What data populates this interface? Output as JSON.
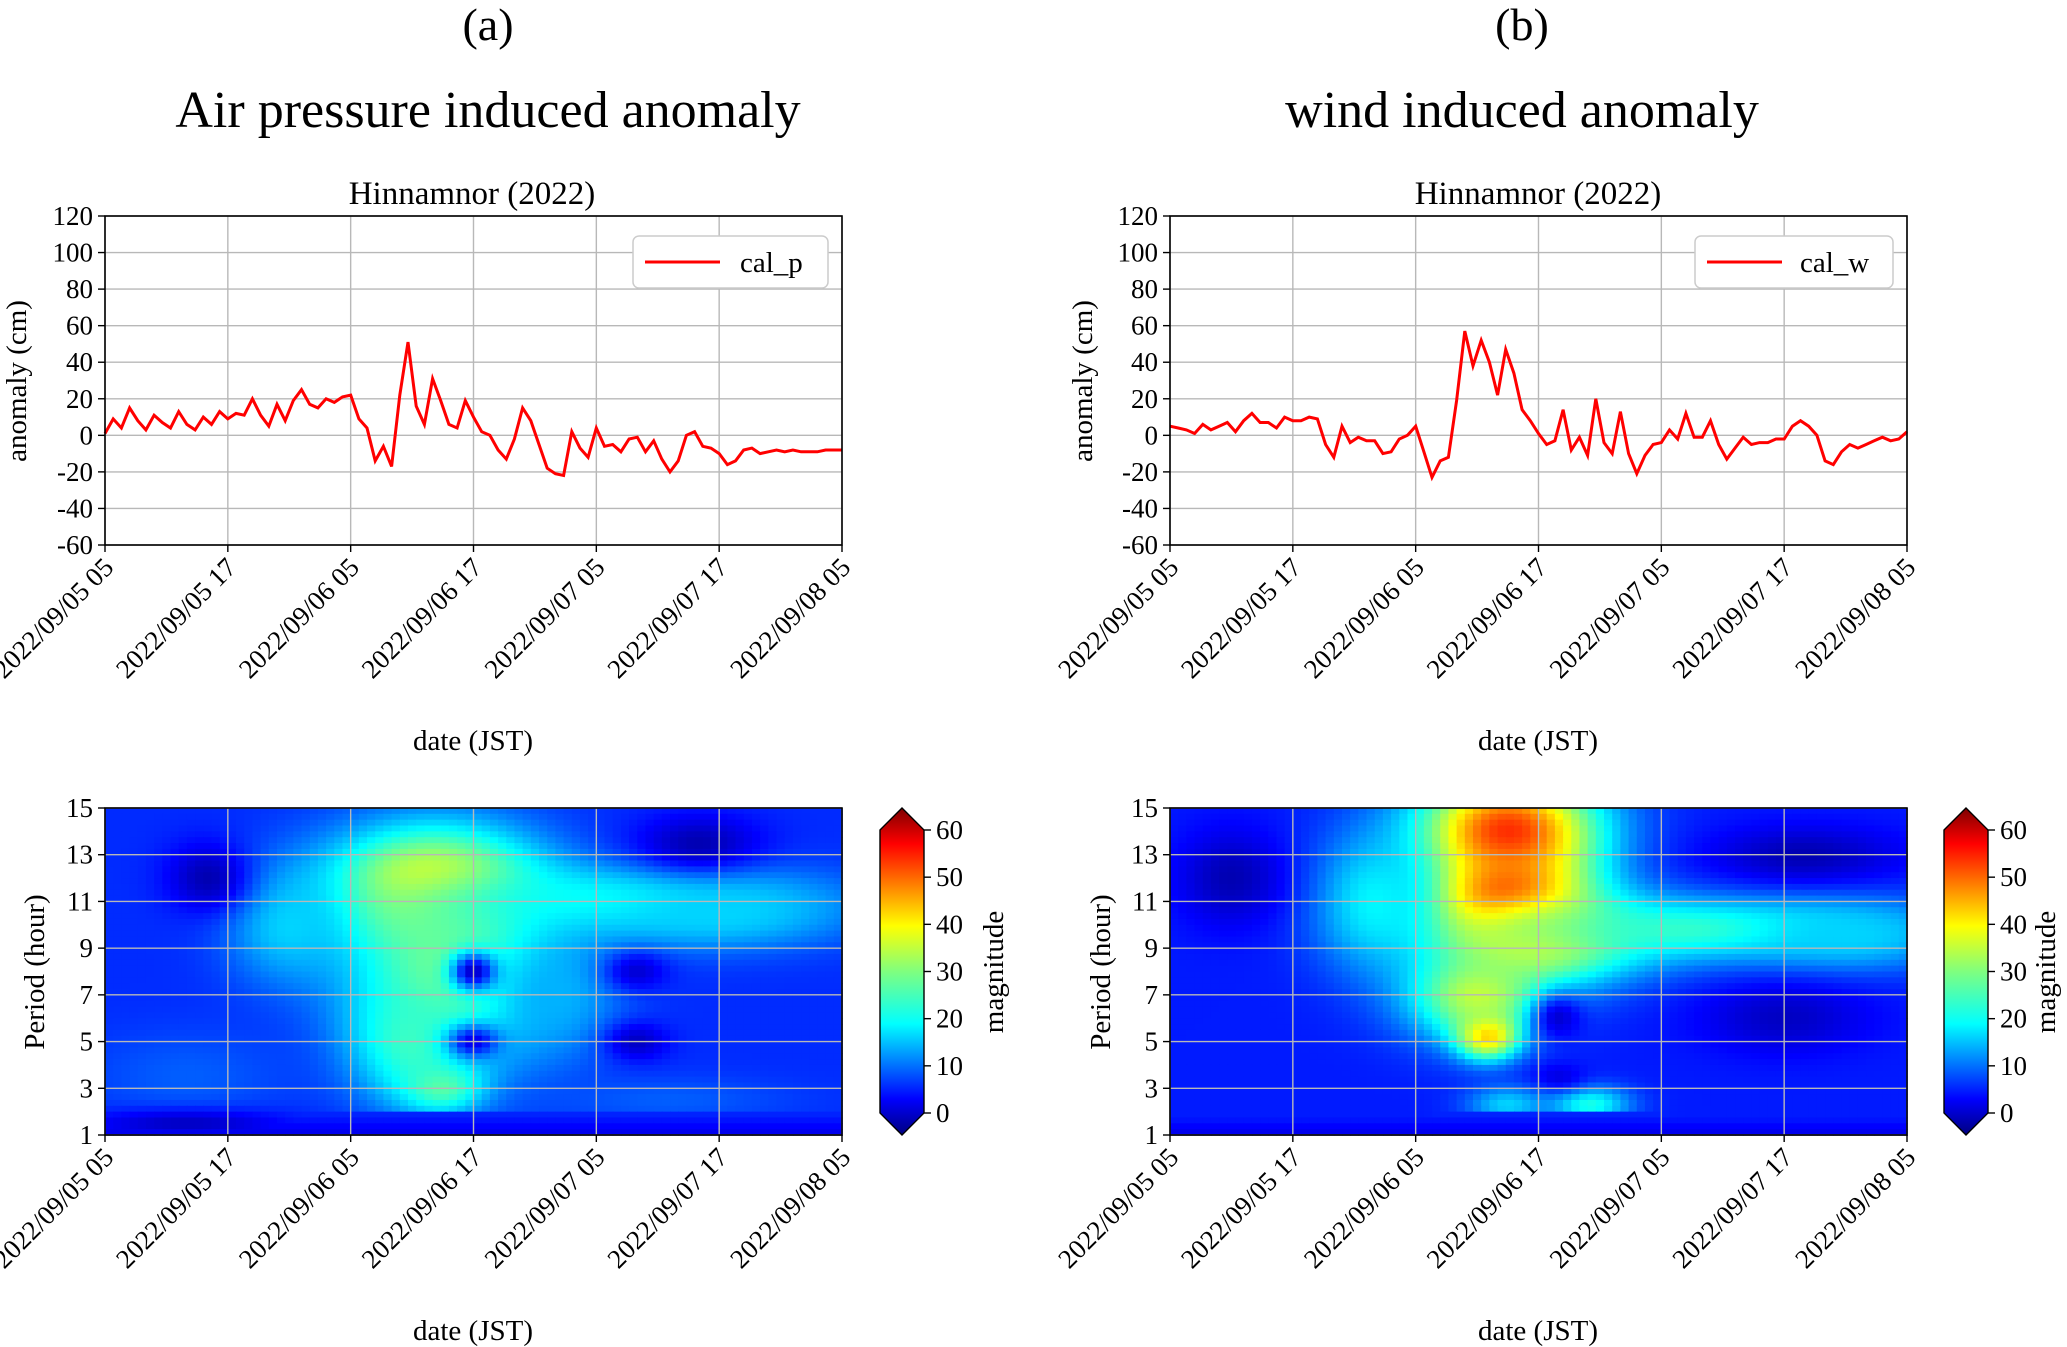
{
  "panels": [
    {
      "letter": "(a)",
      "title": "Air pressure induced anomaly",
      "line_chart": {
        "type": "line",
        "title": "Hinnamnor (2022)",
        "xlabel": "date (JST)",
        "ylabel": "anomaly (cm)",
        "xlim_hours": [
          0,
          72
        ],
        "ylim": [
          -60,
          120
        ],
        "yticks": [
          -60,
          -40,
          -20,
          0,
          20,
          40,
          60,
          80,
          100,
          120
        ],
        "xticks": [
          "2022/09/05 05",
          "2022/09/05 17",
          "2022/09/06 05",
          "2022/09/06 17",
          "2022/09/07 05",
          "2022/09/07 17",
          "2022/09/08 05"
        ],
        "xtick_hours": [
          0,
          12,
          24,
          36,
          48,
          60,
          72
        ],
        "grid": true,
        "legend": "cal_p",
        "legend_position": "top-right",
        "color": "#ff0000",
        "series": [
          {
            "name": "cal_p",
            "x": [
              0,
              0.8,
              1.6,
              2.4,
              3.2,
              4,
              4.8,
              5.6,
              6.4,
              7.2,
              8,
              8.8,
              9.6,
              10.4,
              11.2,
              12,
              12.8,
              13.6,
              14.4,
              15.2,
              16,
              16.8,
              17.6,
              18.4,
              19.2,
              20,
              20.8,
              21.6,
              22.4,
              23.2,
              24,
              24.8,
              25.6,
              26.4,
              27.2,
              28,
              28.8,
              29.6,
              30.4,
              31.2,
              32,
              32.8,
              33.6,
              34.4,
              35.2,
              36,
              36.8,
              37.6,
              38.4,
              39.2,
              40,
              40.8,
              41.6,
              42.4,
              43.2,
              44,
              44.8,
              45.6,
              46.4,
              47.2,
              48,
              48.8,
              49.6,
              50.4,
              51.2,
              52,
              52.8,
              53.6,
              54.4,
              55.2,
              56,
              56.8,
              57.6,
              58.4,
              59.2,
              60,
              60.8,
              61.6,
              62.4,
              63.2,
              64,
              64.8,
              65.6,
              66.4,
              67.2,
              68,
              68.8,
              69.6,
              70.4,
              71.2,
              72
            ],
            "y": [
              1,
              9,
              4,
              15,
              8,
              3,
              11,
              7,
              4,
              13,
              6,
              3,
              10,
              6,
              13,
              9,
              12,
              11,
              20,
              11,
              5,
              17,
              8,
              19,
              25,
              17,
              15,
              20,
              18,
              21,
              22,
              9,
              4,
              -14,
              -6,
              -17,
              22,
              51,
              16,
              6,
              31,
              19,
              6,
              4,
              19,
              10,
              2,
              0,
              -8,
              -13,
              -2,
              15,
              8,
              -5,
              -18,
              -21,
              -22,
              2,
              -7,
              -12,
              4,
              -6,
              -5,
              -9,
              -2,
              -1,
              -9,
              -3,
              -13,
              -20,
              -14,
              0,
              2,
              -6,
              -7,
              -10,
              -16,
              -14,
              -8,
              -7,
              -10,
              -9,
              -8,
              -9,
              -8,
              -9,
              -9,
              -9,
              -8,
              -8,
              -8
            ]
          }
        ]
      },
      "heatmap": {
        "type": "heatmap",
        "xlabel": "date (JST)",
        "ylabel": "Period (hour)",
        "ylim": [
          1,
          15
        ],
        "yticks": [
          1,
          3,
          5,
          7,
          9,
          11,
          13,
          15
        ],
        "xticks": [
          "2022/09/05 05",
          "2022/09/05 17",
          "2022/09/06 05",
          "2022/09/06 17",
          "2022/09/07 05",
          "2022/09/07 17",
          "2022/09/08 05"
        ],
        "colorbar_label": "magnitude",
        "colorbar_ticks": [
          0,
          10,
          20,
          30,
          40,
          50,
          60
        ],
        "colorbar_range": [
          0,
          60
        ],
        "colormap": "jet",
        "background_magnitude": 10,
        "features": [
          {
            "hour": 32,
            "period": 11.5,
            "magnitude": 42,
            "spread_h": 10,
            "spread_p": 2.6
          },
          {
            "hour": 34,
            "period": 8,
            "magnitude": 30,
            "spread_h": 10,
            "spread_p": 4
          },
          {
            "hour": 30,
            "period": 5,
            "magnitude": 26,
            "spread_h": 6,
            "spread_p": 2.5
          },
          {
            "hour": 33,
            "period": 3,
            "magnitude": 28,
            "spread_h": 4,
            "spread_p": 1
          },
          {
            "hour": 48,
            "period": 11,
            "magnitude": 24,
            "spread_h": 20,
            "spread_p": 1.5
          },
          {
            "hour": 60,
            "period": 10.5,
            "magnitude": 20,
            "spread_h": 12,
            "spread_p": 1.5
          },
          {
            "hour": 18,
            "period": 10,
            "magnitude": 20,
            "spread_h": 6,
            "spread_p": 2.5
          },
          {
            "hour": 44,
            "period": 7,
            "magnitude": 18,
            "spread_h": 6,
            "spread_p": 2.5
          },
          {
            "hour": 8,
            "period": 3.5,
            "magnitude": 13,
            "spread_h": 10,
            "spread_p": 2
          },
          {
            "hour": 55,
            "period": 2.5,
            "magnitude": 13,
            "spread_h": 12,
            "spread_p": 1
          },
          {
            "hour": 36,
            "period": 8,
            "magnitude": 4,
            "spread_h": 2.2,
            "spread_p": 0.8
          },
          {
            "hour": 36,
            "period": 5,
            "magnitude": 6,
            "spread_h": 2.5,
            "spread_p": 0.7
          },
          {
            "hour": 52,
            "period": 8,
            "magnitude": 5,
            "spread_h": 3,
            "spread_p": 0.8
          },
          {
            "hour": 52,
            "period": 5,
            "magnitude": 4,
            "spread_h": 3,
            "spread_p": 0.8
          },
          {
            "hour": 10,
            "period": 12,
            "magnitude": 3,
            "spread_h": 4,
            "spread_p": 1.5
          },
          {
            "hour": 58,
            "period": 13.5,
            "magnitude": 3,
            "spread_h": 6,
            "spread_p": 1.2
          },
          {
            "hour": 8,
            "period": 1.5,
            "magnitude": 4,
            "spread_h": 10,
            "spread_p": 0.6
          }
        ]
      }
    },
    {
      "letter": "(b)",
      "title": "wind induced anomaly",
      "line_chart": {
        "type": "line",
        "title": "Hinnamnor (2022)",
        "xlabel": "date (JST)",
        "ylabel": "anomaly (cm)",
        "xlim_hours": [
          0,
          72
        ],
        "ylim": [
          -60,
          120
        ],
        "yticks": [
          -60,
          -40,
          -20,
          0,
          20,
          40,
          60,
          80,
          100,
          120
        ],
        "xticks": [
          "2022/09/05 05",
          "2022/09/05 17",
          "2022/09/06 05",
          "2022/09/06 17",
          "2022/09/07 05",
          "2022/09/07 17",
          "2022/09/08 05"
        ],
        "xtick_hours": [
          0,
          12,
          24,
          36,
          48,
          60,
          72
        ],
        "grid": true,
        "legend": "cal_w",
        "legend_position": "top-right",
        "color": "#ff0000",
        "series": [
          {
            "name": "cal_w",
            "x": [
              0,
              0.8,
              1.6,
              2.4,
              3.2,
              4,
              4.8,
              5.6,
              6.4,
              7.2,
              8,
              8.8,
              9.6,
              10.4,
              11.2,
              12,
              12.8,
              13.6,
              14.4,
              15.2,
              16,
              16.8,
              17.6,
              18.4,
              19.2,
              20,
              20.8,
              21.6,
              22.4,
              23.2,
              24,
              24.8,
              25.6,
              26.4,
              27.2,
              28,
              28.8,
              29.6,
              30.4,
              31.2,
              32,
              32.8,
              33.6,
              34.4,
              35.2,
              36,
              36.8,
              37.6,
              38.4,
              39.2,
              40,
              40.8,
              41.6,
              42.4,
              43.2,
              44,
              44.8,
              45.6,
              46.4,
              47.2,
              48,
              48.8,
              49.6,
              50.4,
              51.2,
              52,
              52.8,
              53.6,
              54.4,
              55.2,
              56,
              56.8,
              57.6,
              58.4,
              59.2,
              60,
              60.8,
              61.6,
              62.4,
              63.2,
              64,
              64.8,
              65.6,
              66.4,
              67.2,
              68,
              68.8,
              69.6,
              70.4,
              71.2,
              72
            ],
            "y": [
              5,
              4,
              3,
              1,
              6,
              3,
              5,
              7,
              2,
              8,
              12,
              7,
              7,
              4,
              10,
              8,
              8,
              10,
              9,
              -5,
              -12,
              5,
              -4,
              -1,
              -3,
              -3,
              -10,
              -9,
              -2,
              0,
              5,
              -9,
              -23,
              -14,
              -12,
              19,
              57,
              38,
              52,
              40,
              22,
              47,
              34,
              14,
              8,
              1,
              -5,
              -3,
              14,
              -8,
              -1,
              -11,
              20,
              -4,
              -10,
              13,
              -10,
              -21,
              -11,
              -5,
              -4,
              3,
              -2,
              12,
              -1,
              -1,
              8,
              -5,
              -13,
              -7,
              -1,
              -5,
              -4,
              -4,
              -2,
              -2,
              5,
              8,
              5,
              0,
              -14,
              -16,
              -9,
              -5,
              -7,
              -5,
              -3,
              -1,
              -3,
              -2,
              2
            ]
          }
        ]
      },
      "heatmap": {
        "type": "heatmap",
        "xlabel": "date (JST)",
        "ylabel": "Period (hour)",
        "ylim": [
          1,
          15
        ],
        "yticks": [
          1,
          3,
          5,
          7,
          9,
          11,
          13,
          15
        ],
        "xticks": [
          "2022/09/05 05",
          "2022/09/05 17",
          "2022/09/06 05",
          "2022/09/06 17",
          "2022/09/07 05",
          "2022/09/07 17",
          "2022/09/08 05"
        ],
        "colorbar_label": "magnitude",
        "colorbar_ticks": [
          0,
          10,
          20,
          30,
          40,
          50,
          60
        ],
        "colorbar_range": [
          0,
          60
        ],
        "colormap": "jet",
        "background_magnitude": 9,
        "features": [
          {
            "hour": 33,
            "period": 11,
            "magnitude": 58,
            "spread_h": 7,
            "spread_p": 2
          },
          {
            "hour": 33,
            "period": 14,
            "magnitude": 50,
            "spread_h": 9,
            "spread_p": 2.5
          },
          {
            "hour": 36,
            "period": 9.5,
            "magnitude": 38,
            "spread_h": 10,
            "spread_p": 2
          },
          {
            "hour": 31,
            "period": 5.3,
            "magnitude": 45,
            "spread_h": 3,
            "spread_p": 1
          },
          {
            "hour": 30,
            "period": 7,
            "magnitude": 34,
            "spread_h": 7,
            "spread_p": 2
          },
          {
            "hour": 20,
            "period": 11,
            "magnitude": 22,
            "spread_h": 6,
            "spread_p": 3
          },
          {
            "hour": 52,
            "period": 9.8,
            "magnitude": 26,
            "spread_h": 20,
            "spread_p": 1.4
          },
          {
            "hour": 66,
            "period": 9.5,
            "magnitude": 20,
            "spread_h": 10,
            "spread_p": 1.4
          },
          {
            "hour": 41,
            "period": 2.3,
            "magnitude": 24,
            "spread_h": 4,
            "spread_p": 0.8
          },
          {
            "hour": 33,
            "period": 2.3,
            "magnitude": 20,
            "spread_h": 4,
            "spread_p": 0.8
          },
          {
            "hour": 38,
            "period": 6,
            "magnitude": 5,
            "spread_h": 2.5,
            "spread_p": 1
          },
          {
            "hour": 38,
            "period": 3.5,
            "magnitude": 6,
            "spread_h": 2.5,
            "spread_p": 0.6
          },
          {
            "hour": 60,
            "period": 6,
            "magnitude": 4,
            "spread_h": 8,
            "spread_p": 1.5
          },
          {
            "hour": 62,
            "period": 13,
            "magnitude": 3,
            "spread_h": 9,
            "spread_p": 1.2
          },
          {
            "hour": 6,
            "period": 12,
            "magnitude": 3,
            "spread_h": 5,
            "spread_p": 2
          }
        ]
      }
    }
  ]
}
